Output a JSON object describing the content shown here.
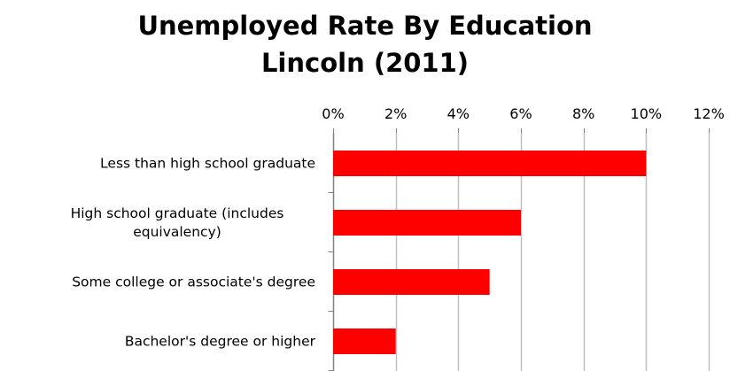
{
  "chart_data": {
    "type": "bar",
    "orientation": "horizontal",
    "title_lines": [
      "Unemployed Rate By Education",
      "Lincoln (2011)"
    ],
    "categories": [
      [
        "Less than high school graduate"
      ],
      [
        "High school graduate (includes",
        "equivalency)"
      ],
      [
        "Some college or associate's degree"
      ],
      [
        "Bachelor's degree or higher"
      ]
    ],
    "values": [
      10,
      6,
      5,
      2
    ],
    "value_unit": "%",
    "xlim": [
      0,
      12
    ],
    "x_ticks": [
      "0%",
      "2%",
      "4%",
      "6%",
      "8%",
      "10%",
      "12%"
    ],
    "tick_step": 2,
    "axis_position": "top",
    "grid": true,
    "legend": "none",
    "colors": {
      "bar": "#ff0000",
      "grid": "#bfbfbf",
      "axis": "#808080"
    }
  }
}
